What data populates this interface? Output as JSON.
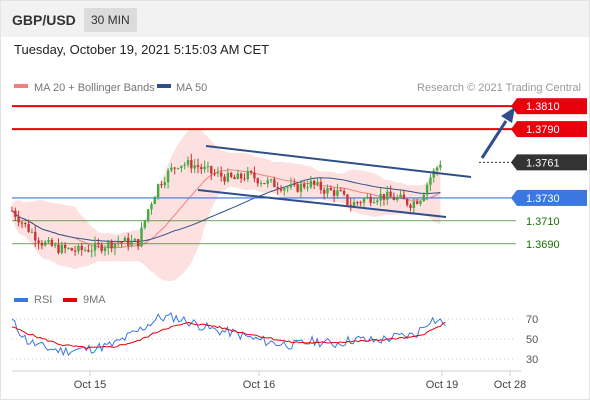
{
  "header": {
    "pair": "GBP/USD",
    "timeframe": "30 MIN"
  },
  "timestamp": "Tuesday, October 19, 2021 5:15:03 AM CET",
  "colors": {
    "resistance": "#e8000b",
    "support": "#1a6e00",
    "pivot": "#3a78e0",
    "channel": "#2e4f8a",
    "current": "#333333",
    "bull_candle": "#44aa44",
    "bear_candle": "#cc3333",
    "bollinger_fill": "#fde0e0",
    "ma20": "#f08080",
    "ma50": "#2e4f8a",
    "rsi": "#3a78e0",
    "rsi_ma": "#e8000b"
  },
  "chart_data": [
    {
      "type": "candlestick",
      "legend": [
        {
          "name": "MA 20 + Bollinger Bands",
          "color": "#f08080"
        },
        {
          "name": "MA 50",
          "color": "#2e4f8a"
        }
      ],
      "source": "Research © 2021 Trading Central",
      "ylim": [
        1.3675,
        1.3818
      ],
      "levels": [
        {
          "label": "1.3810",
          "value": 1.381,
          "kind": "resistance"
        },
        {
          "label": "1.3790",
          "value": 1.379,
          "kind": "resistance"
        },
        {
          "label": "1.3761",
          "value": 1.3761,
          "kind": "current"
        },
        {
          "label": "1.3730",
          "value": 1.373,
          "kind": "pivot"
        },
        {
          "label": "1.3710",
          "value": 1.371,
          "kind": "support"
        },
        {
          "label": "1.3690",
          "value": 1.369,
          "kind": "support"
        }
      ],
      "trend": "up",
      "price_path": [
        [
          0,
          1.3719
        ],
        [
          0.03,
          1.3704
        ],
        [
          0.06,
          1.3691
        ],
        [
          0.09,
          1.3686
        ],
        [
          0.13,
          1.3684
        ],
        [
          0.17,
          1.3687
        ],
        [
          0.21,
          1.3692
        ],
        [
          0.25,
          1.3691
        ],
        [
          0.27,
          1.372
        ],
        [
          0.29,
          1.3741
        ],
        [
          0.31,
          1.3752
        ],
        [
          0.33,
          1.376
        ],
        [
          0.36,
          1.3759
        ],
        [
          0.4,
          1.3751
        ],
        [
          0.44,
          1.3746
        ],
        [
          0.47,
          1.375
        ],
        [
          0.5,
          1.3744
        ],
        [
          0.53,
          1.3741
        ],
        [
          0.56,
          1.3738
        ],
        [
          0.59,
          1.3743
        ],
        [
          0.62,
          1.3737
        ],
        [
          0.65,
          1.3734
        ],
        [
          0.67,
          1.3724
        ],
        [
          0.7,
          1.3729
        ],
        [
          0.73,
          1.3732
        ],
        [
          0.77,
          1.3729
        ],
        [
          0.79,
          1.3725
        ],
        [
          0.81,
          1.373
        ],
        [
          0.83,
          1.3748
        ],
        [
          0.85,
          1.3761
        ]
      ]
    },
    {
      "type": "line",
      "legend": [
        {
          "name": "RSI",
          "color": "#3a78e0"
        },
        {
          "name": "9MA",
          "color": "#e8000b"
        }
      ],
      "ylim": [
        20,
        80
      ],
      "ticks": [
        "70",
        "50",
        "30"
      ],
      "x_ticks": [
        "Oct 15",
        "Oct 16",
        "Oct 19",
        "Oct 28"
      ],
      "rsi_path": [
        [
          0,
          68
        ],
        [
          0.03,
          48
        ],
        [
          0.06,
          42
        ],
        [
          0.1,
          38
        ],
        [
          0.15,
          40
        ],
        [
          0.2,
          44
        ],
        [
          0.25,
          58
        ],
        [
          0.29,
          71
        ],
        [
          0.32,
          72
        ],
        [
          0.36,
          66
        ],
        [
          0.4,
          59
        ],
        [
          0.44,
          56
        ],
        [
          0.48,
          50
        ],
        [
          0.52,
          46
        ],
        [
          0.56,
          44
        ],
        [
          0.6,
          48
        ],
        [
          0.64,
          45
        ],
        [
          0.68,
          50
        ],
        [
          0.72,
          48
        ],
        [
          0.76,
          52
        ],
        [
          0.8,
          54
        ],
        [
          0.83,
          70
        ],
        [
          0.86,
          66
        ]
      ],
      "ma_path": [
        [
          0,
          62
        ],
        [
          0.05,
          52
        ],
        [
          0.1,
          44
        ],
        [
          0.15,
          41
        ],
        [
          0.2,
          42
        ],
        [
          0.25,
          48
        ],
        [
          0.3,
          60
        ],
        [
          0.35,
          66
        ],
        [
          0.4,
          63
        ],
        [
          0.45,
          57
        ],
        [
          0.5,
          52
        ],
        [
          0.55,
          47
        ],
        [
          0.6,
          46
        ],
        [
          0.65,
          47
        ],
        [
          0.7,
          48
        ],
        [
          0.75,
          50
        ],
        [
          0.8,
          52
        ],
        [
          0.83,
          58
        ],
        [
          0.86,
          66
        ]
      ]
    }
  ]
}
